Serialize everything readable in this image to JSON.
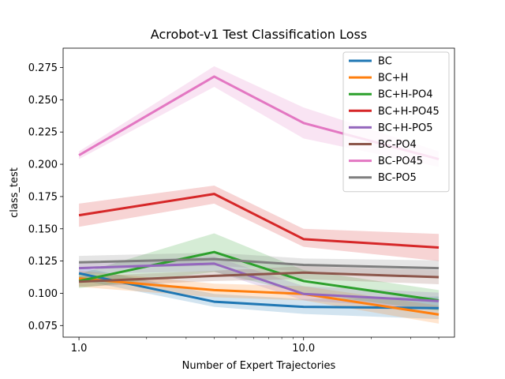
{
  "chart_data": {
    "type": "line",
    "title": "Acrobot-v1 Test Classification Loss",
    "xlabel": "Number of Expert Trajectories",
    "ylabel": "class_test",
    "x_scale": "log",
    "x": [
      1,
      4,
      10,
      40
    ],
    "xlim": [
      0.85,
      47
    ],
    "ylim": [
      0.066,
      0.29
    ],
    "x_ticks": [
      1,
      10
    ],
    "x_tick_labels": [
      "1.0",
      "10.0"
    ],
    "y_ticks": [
      0.075,
      0.1,
      0.125,
      0.15,
      0.175,
      0.2,
      0.225,
      0.25,
      0.275
    ],
    "y_tick_labels": [
      "0.075",
      "0.100",
      "0.125",
      "0.150",
      "0.175",
      "0.200",
      "0.225",
      "0.250",
      "0.275"
    ],
    "legend_position": "top-right",
    "shaded_bands": true,
    "series": [
      {
        "name": "BC",
        "color": "#1f77b4",
        "values": [
          0.1155,
          0.0935,
          0.0895,
          0.0885
        ],
        "lower": [
          0.1105,
          0.0895,
          0.084,
          0.08
        ],
        "upper": [
          0.1205,
          0.0995,
          0.0955,
          0.0975
        ]
      },
      {
        "name": "BC+H",
        "color": "#ff7f0e",
        "values": [
          0.1115,
          0.1025,
          0.0995,
          0.0835
        ],
        "lower": [
          0.105,
          0.097,
          0.0945,
          0.0765
        ],
        "upper": [
          0.1175,
          0.1075,
          0.1055,
          0.0905
        ]
      },
      {
        "name": "BC+H-PO4",
        "color": "#2ca02c",
        "values": [
          0.1095,
          0.132,
          0.1095,
          0.0945
        ],
        "lower": [
          0.104,
          0.1165,
          0.1,
          0.0865
        ],
        "upper": [
          0.115,
          0.1465,
          0.118,
          0.1025
        ]
      },
      {
        "name": "BC+H-PO45",
        "color": "#d62728",
        "values": [
          0.1605,
          0.177,
          0.142,
          0.1355
        ],
        "lower": [
          0.1515,
          0.1695,
          0.136,
          0.125
        ],
        "upper": [
          0.1695,
          0.1835,
          0.15,
          0.146
        ]
      },
      {
        "name": "BC+H-PO5",
        "color": "#9467bd",
        "values": [
          0.1195,
          0.123,
          0.0995,
          0.094
        ],
        "lower": [
          0.115,
          0.117,
          0.0945,
          0.0875
        ],
        "upper": [
          0.124,
          0.1285,
          0.1055,
          0.1005
        ]
      },
      {
        "name": "BC-PO4",
        "color": "#8c564b",
        "values": [
          0.109,
          0.1135,
          0.116,
          0.1125
        ],
        "lower": [
          0.105,
          0.1095,
          0.111,
          0.107
        ],
        "upper": [
          0.113,
          0.1175,
          0.121,
          0.118
        ]
      },
      {
        "name": "BC-PO45",
        "color": "#e377c2",
        "values": [
          0.207,
          0.268,
          0.232,
          0.204
        ],
        "lower": [
          0.204,
          0.26,
          0.22,
          0.198
        ],
        "upper": [
          0.21,
          0.276,
          0.244,
          0.21
        ]
      },
      {
        "name": "BC-PO5",
        "color": "#7f7f7f",
        "values": [
          0.124,
          0.1265,
          0.122,
          0.1195
        ],
        "lower": [
          0.119,
          0.1215,
          0.117,
          0.1135
        ],
        "upper": [
          0.129,
          0.1315,
          0.127,
          0.1255
        ]
      }
    ]
  }
}
